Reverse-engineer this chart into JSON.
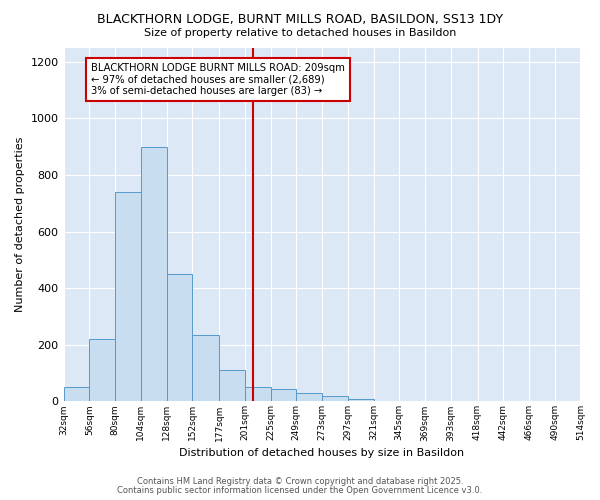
{
  "title1": "BLACKTHORN LODGE, BURNT MILLS ROAD, BASILDON, SS13 1DY",
  "title2": "Size of property relative to detached houses in Basildon",
  "xlabel": "Distribution of detached houses by size in Basildon",
  "ylabel": "Number of detached properties",
  "bin_labels": [
    "32sqm",
    "56sqm",
    "80sqm",
    "104sqm",
    "128sqm",
    "152sqm",
    "177sqm",
    "201sqm",
    "225sqm",
    "249sqm",
    "273sqm",
    "297sqm",
    "321sqm",
    "345sqm",
    "369sqm",
    "393sqm",
    "418sqm",
    "442sqm",
    "466sqm",
    "490sqm",
    "514sqm"
  ],
  "bin_edges": [
    32,
    56,
    80,
    104,
    128,
    152,
    177,
    201,
    225,
    249,
    273,
    297,
    321,
    345,
    369,
    393,
    418,
    442,
    466,
    490,
    514
  ],
  "bar_heights": [
    50,
    220,
    740,
    900,
    450,
    235,
    110,
    50,
    45,
    30,
    20,
    10,
    0,
    0,
    0,
    0,
    0,
    0,
    0,
    0
  ],
  "bar_color": "#c8ddf0",
  "bar_edge_color": "#5599cc",
  "red_line_x": 209,
  "ylim": [
    0,
    1250
  ],
  "yticks": [
    0,
    200,
    400,
    600,
    800,
    1000,
    1200
  ],
  "annotation_line1": "BLACKTHORN LODGE BURNT MILLS ROAD: 209sqm",
  "annotation_line2": "← 97% of detached houses are smaller (2,689)",
  "annotation_line3": "3% of semi-detached houses are larger (83) →",
  "fig_bg_color": "#ffffff",
  "plot_bg_color": "#dce8f5",
  "grid_color": "#ffffff",
  "footer1": "Contains HM Land Registry data © Crown copyright and database right 2025.",
  "footer2": "Contains public sector information licensed under the Open Government Licence v3.0."
}
